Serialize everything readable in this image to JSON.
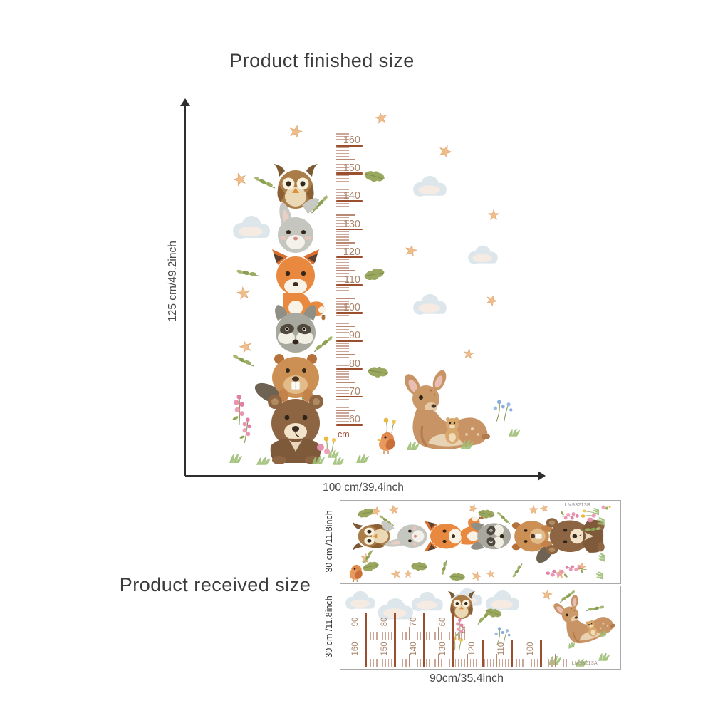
{
  "finished": {
    "title": "Product finished size",
    "height_label": "125 cm/49.2inch",
    "width_label": "100 cm/39.4inch"
  },
  "received": {
    "title": "Product received size",
    "width_label": "90cm/35.4inch",
    "strips": [
      {
        "side_label": "30 cm /11.8inch",
        "code": "LM93213B",
        "content": "stacked woodland animals sticker sheet: bunny, fox, raccoon, beaver, bear with stars, oak leaves, bird"
      },
      {
        "side_label": "30 cm /11.8inch",
        "code": "LM93213A",
        "content": "sticker sheet with clouds, owl, flowers, two ruler segments and deer with teddy bear"
      }
    ]
  },
  "main_ruler": {
    "unit": "cm",
    "values": [
      160,
      150,
      140,
      130,
      120,
      110,
      100,
      90,
      80,
      70,
      60
    ]
  },
  "received_ruler": {
    "unit": "cm",
    "row1": [
      90,
      80,
      70,
      60
    ],
    "row2": [
      160,
      150,
      140,
      130,
      120,
      110,
      100
    ]
  },
  "artwork": {
    "animals": [
      "owl",
      "bunny",
      "fox",
      "raccoon",
      "beaver",
      "bear",
      "deer",
      "teddy-bear",
      "bird"
    ],
    "decor": [
      "stars",
      "clouds",
      "oak-leaves",
      "pink-flowers",
      "blue-flowers",
      "yellow-flowers",
      "grass"
    ]
  },
  "colors": {
    "ruler_major": "#9b4f2e",
    "ruler_minor": "#cda69a",
    "ruler_number": "#a8846a",
    "star": "#eebd8a",
    "cloud": "#dde7eb",
    "title_text": "#3b3b3b"
  }
}
